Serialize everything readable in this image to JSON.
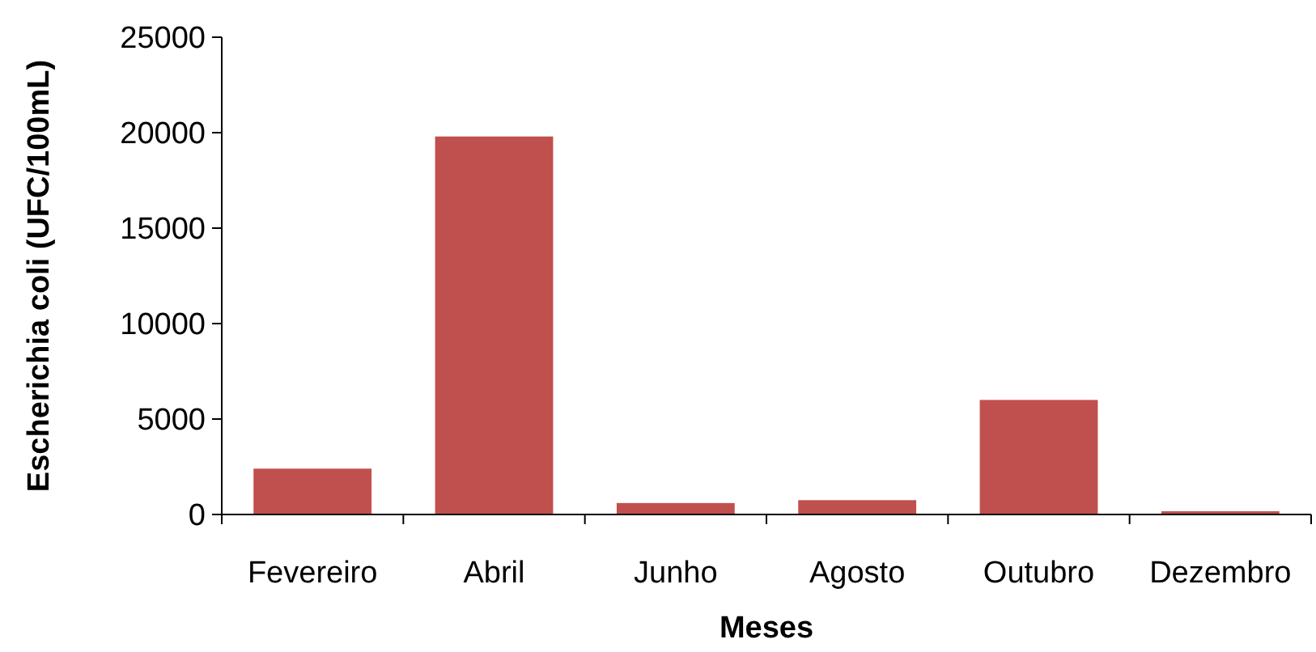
{
  "chart_data": {
    "type": "bar",
    "xlabel": "Meses",
    "ylabel": "Escherichia coli (UFC/100mL)",
    "categories": [
      "Fevereiro",
      "Abril",
      "Junho",
      "Agosto",
      "Outubro",
      "Dezembro"
    ],
    "values": [
      2400,
      19800,
      600,
      750,
      6000,
      170
    ],
    "color": "#c0504d",
    "ylim": [
      0,
      25000
    ],
    "yticks": [
      0,
      5000,
      10000,
      15000,
      20000,
      25000
    ],
    "grid": false
  }
}
